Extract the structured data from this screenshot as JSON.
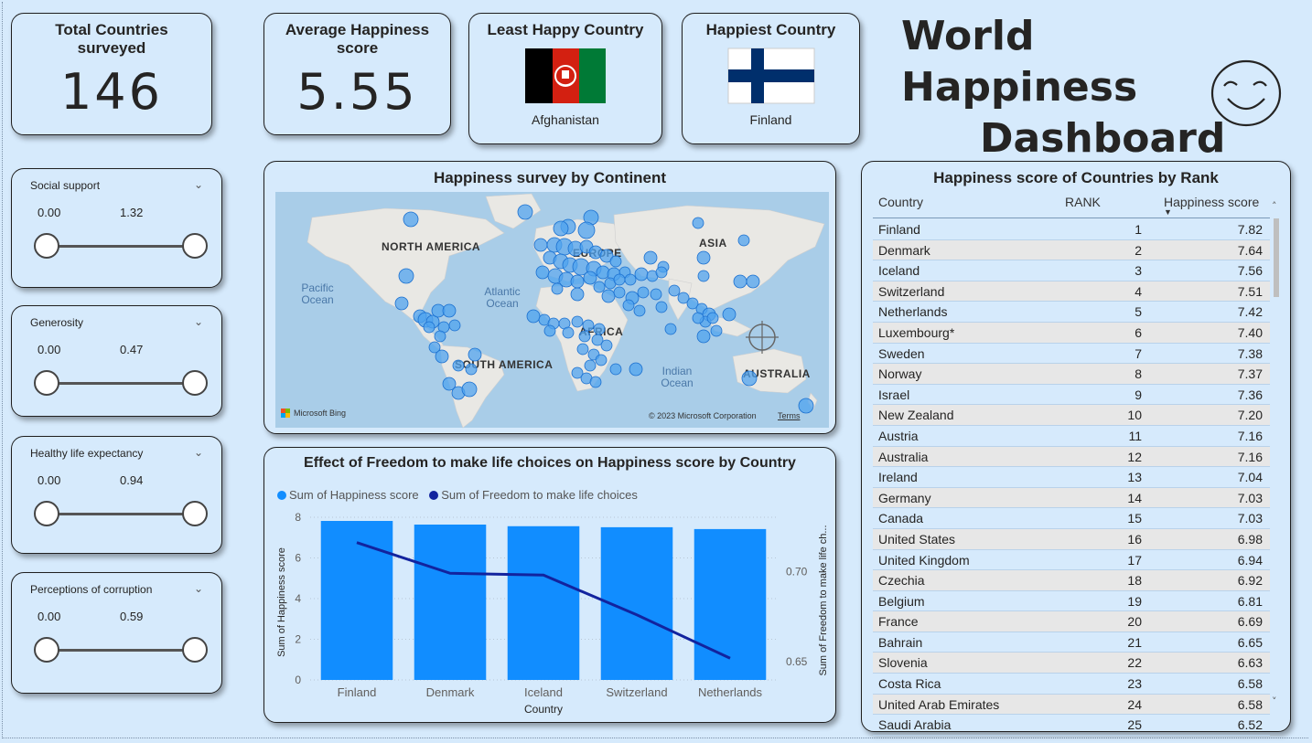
{
  "title": {
    "line1": "World Happiness",
    "line2": "Dashboard"
  },
  "kpis": {
    "total_countries": {
      "label": "Total Countries surveyed",
      "value": "146"
    },
    "avg_happiness": {
      "label": "Average Happiness score",
      "value": "5.55"
    },
    "least_happy": {
      "label": "Least Happy Country",
      "country": "Afghanistan"
    },
    "happiest": {
      "label": "Happiest Country",
      "country": "Finland"
    }
  },
  "slicers": [
    {
      "label": "Social support",
      "min": "0.00",
      "max": "1.32"
    },
    {
      "label": "Generosity",
      "min": "0.00",
      "max": "0.47"
    },
    {
      "label": "Healthy life expectancy",
      "min": "0.00",
      "max": "0.94"
    },
    {
      "label": "Perceptions of corruption",
      "min": "0.00",
      "max": "0.59"
    }
  ],
  "map": {
    "title": "Happiness survey by Continent",
    "labels": [
      "NORTH AMERICA",
      "EUROPE",
      "ASIA",
      "AFRICA",
      "SOUTH AMERICA",
      "AUSTRALIA"
    ],
    "oceans": [
      "Pacific Ocean",
      "Atlantic Ocean",
      "Indian Ocean"
    ],
    "credit_left": "Microsoft Bing",
    "credit_right": "© 2023 Microsoft Corporation",
    "terms": "Terms"
  },
  "chart_data": {
    "type": "bar",
    "title": "Effect of Freedom to make life choices on Happiness score by Country",
    "categories": [
      "Finland",
      "Denmark",
      "Iceland",
      "Switzerland",
      "Netherlands"
    ],
    "series": [
      {
        "name": "Sum of Happiness score",
        "type": "bar",
        "axis": "left",
        "values": [
          7.82,
          7.64,
          7.56,
          7.51,
          7.42
        ],
        "color": "#118dff"
      },
      {
        "name": "Sum of Freedom to make life choices",
        "type": "line",
        "axis": "right",
        "values": [
          0.716,
          0.699,
          0.698,
          0.676,
          0.652
        ],
        "color": "#12239e"
      }
    ],
    "xlabel": "Country",
    "ylabel": "Sum of Happiness score",
    "y2label": "Sum of Freedom to make life ch...",
    "ylim": [
      0,
      8
    ],
    "yticks": [
      "0",
      "2",
      "4",
      "6",
      "8"
    ],
    "y2lim": [
      0.64,
      0.73
    ],
    "y2ticks": [
      "0.65",
      "0.70"
    ],
    "grid": true,
    "legend": "top-left"
  },
  "table": {
    "title": "Happiness score of Countries by Rank",
    "columns": [
      "Country",
      "RANK",
      "Happiness score"
    ],
    "rows": [
      [
        "Finland",
        "1",
        "7.82"
      ],
      [
        "Denmark",
        "2",
        "7.64"
      ],
      [
        "Iceland",
        "3",
        "7.56"
      ],
      [
        "Switzerland",
        "4",
        "7.51"
      ],
      [
        "Netherlands",
        "5",
        "7.42"
      ],
      [
        "Luxembourg*",
        "6",
        "7.40"
      ],
      [
        "Sweden",
        "7",
        "7.38"
      ],
      [
        "Norway",
        "8",
        "7.37"
      ],
      [
        "Israel",
        "9",
        "7.36"
      ],
      [
        "New Zealand",
        "10",
        "7.20"
      ],
      [
        "Austria",
        "11",
        "7.16"
      ],
      [
        "Australia",
        "12",
        "7.16"
      ],
      [
        "Ireland",
        "13",
        "7.04"
      ],
      [
        "Germany",
        "14",
        "7.03"
      ],
      [
        "Canada",
        "15",
        "7.03"
      ],
      [
        "United States",
        "16",
        "6.98"
      ],
      [
        "United Kingdom",
        "17",
        "6.94"
      ],
      [
        "Czechia",
        "18",
        "6.92"
      ],
      [
        "Belgium",
        "19",
        "6.81"
      ],
      [
        "France",
        "20",
        "6.69"
      ],
      [
        "Bahrain",
        "21",
        "6.65"
      ],
      [
        "Slovenia",
        "22",
        "6.63"
      ],
      [
        "Costa Rica",
        "23",
        "6.58"
      ],
      [
        "United Arab Emirates",
        "24",
        "6.58"
      ],
      [
        "Saudi Arabia",
        "25",
        "6.52"
      ]
    ]
  },
  "colors": {
    "background": "#d6eafc",
    "bar": "#118dff",
    "line": "#12239e",
    "map_dot": "#4fa3ef"
  }
}
